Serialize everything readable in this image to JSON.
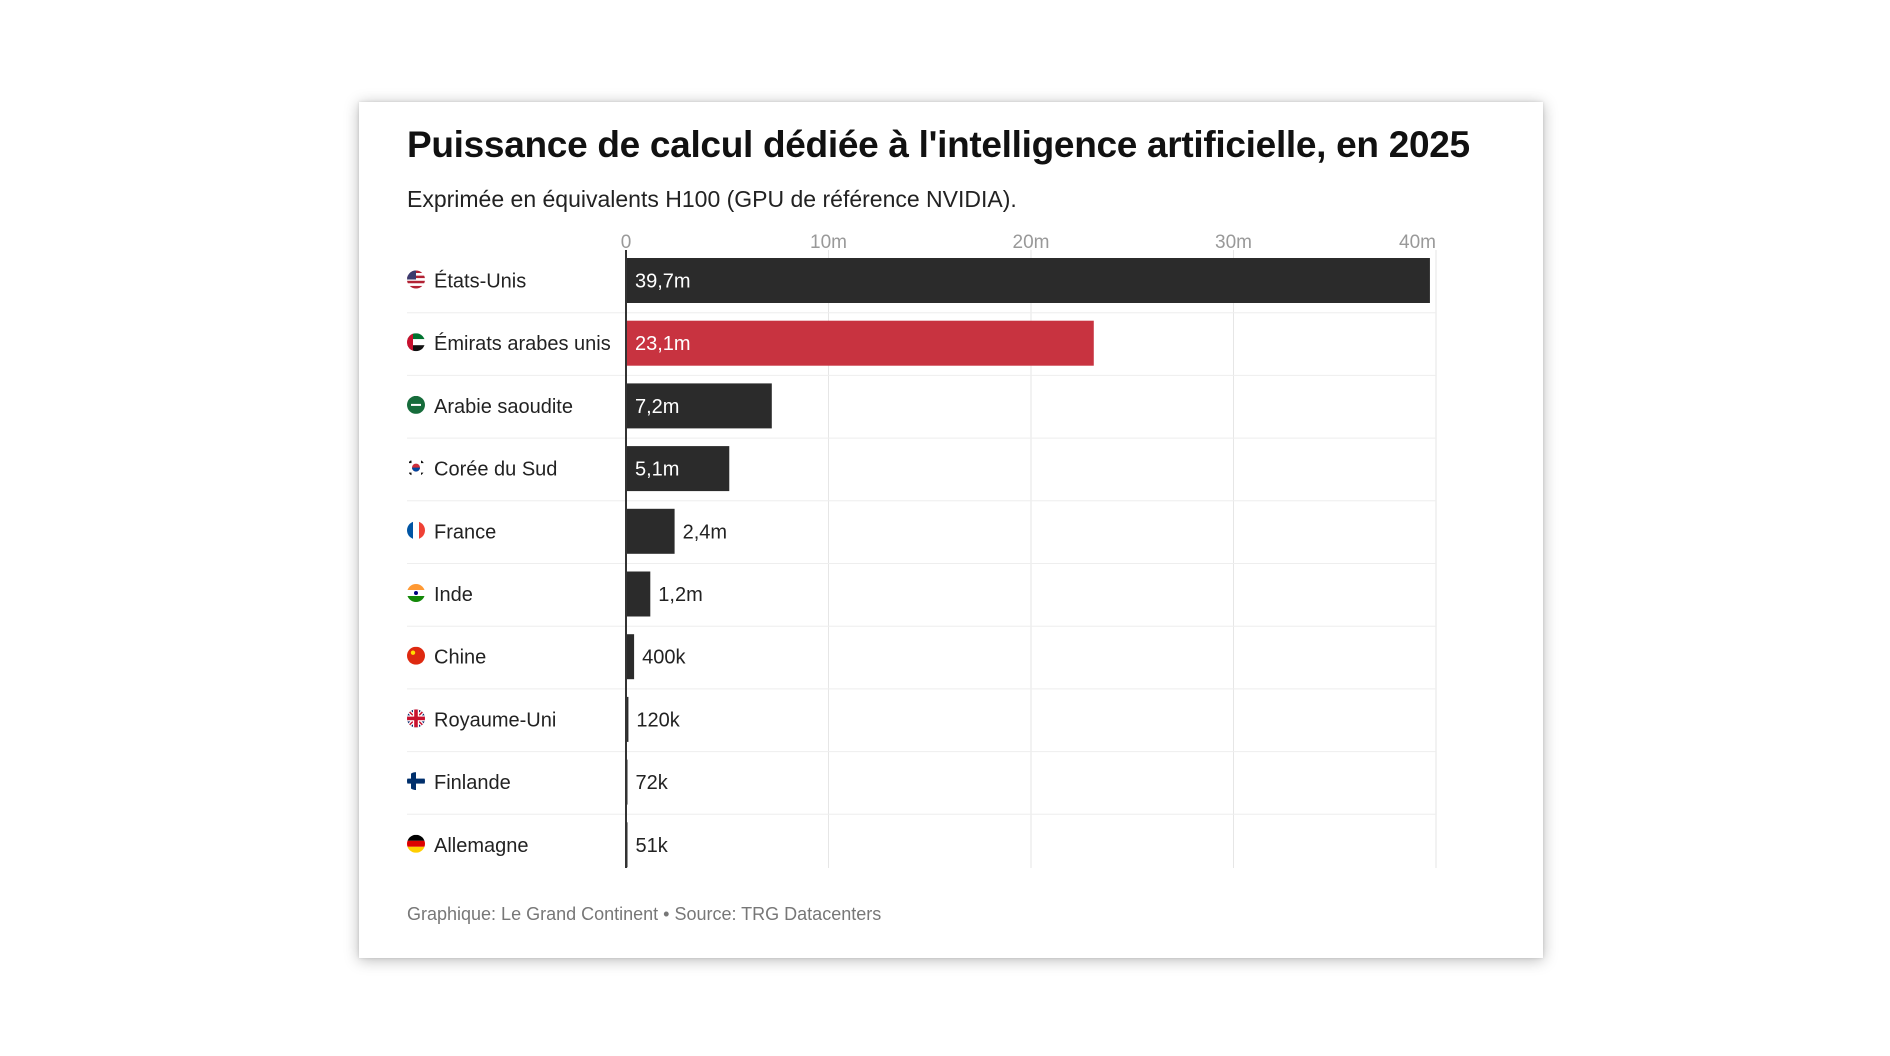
{
  "title": "Puissance de calcul dédiée à l'intelligence artificielle, en 2025",
  "subtitle": "Exprimée en équivalents H100 (GPU de référence NVIDIA).",
  "footer": "Graphique: Le Grand Continent • Source: TRG Datacenters",
  "colors": {
    "bar": "#2b2b2b",
    "highlight": "#c83340",
    "grid": "#e6e6e6",
    "axis": "#333333"
  },
  "chart_data": {
    "type": "bar",
    "orientation": "horizontal",
    "categories": [
      "États-Unis",
      "Émirats arabes unis",
      "Arabie saoudite",
      "Corée du Sud",
      "France",
      "Inde",
      "Chine",
      "Royaume-Uni",
      "Finlande",
      "Allemagne"
    ],
    "flags": [
      "us-flag-icon",
      "ae-flag-icon",
      "sa-flag-icon",
      "kr-flag-icon",
      "fr-flag-icon",
      "in-flag-icon",
      "cn-flag-icon",
      "gb-flag-icon",
      "fi-flag-icon",
      "de-flag-icon"
    ],
    "values": [
      39700000,
      23100000,
      7200000,
      5100000,
      2400000,
      1200000,
      400000,
      120000,
      72000,
      51000
    ],
    "labels": [
      "39,7m",
      "23,1m",
      "7,2m",
      "5,1m",
      "2,4m",
      "1,2m",
      "400k",
      "120k",
      "72k",
      "51k"
    ],
    "highlight_index": 1,
    "xlim": [
      0,
      40000000
    ],
    "xticks": [
      0,
      10000000,
      20000000,
      30000000,
      40000000
    ],
    "xtick_labels": [
      "0",
      "10m",
      "20m",
      "30m",
      "40m"
    ],
    "xaxis_position": "top",
    "grid": true,
    "legend": false
  }
}
